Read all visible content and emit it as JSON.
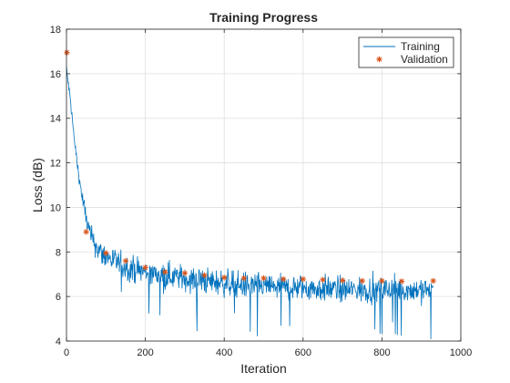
{
  "chart_data": {
    "type": "line",
    "title": "Training Progress",
    "xlabel": "Iteration",
    "ylabel": "Loss (dB)",
    "xlim": [
      0,
      1000
    ],
    "ylim": [
      4,
      18
    ],
    "xticks": [
      0,
      200,
      400,
      600,
      800,
      1000
    ],
    "yticks": [
      4,
      6,
      8,
      10,
      12,
      14,
      16,
      18
    ],
    "xtick_labels": [
      "0",
      "200",
      "400",
      "600",
      "800",
      "1000"
    ],
    "ytick_labels": [
      "4",
      "6",
      "8",
      "10",
      "12",
      "14",
      "16",
      "18"
    ],
    "grid": true,
    "legend_position": "top-right",
    "series": [
      {
        "name": "Training",
        "style": "line",
        "color": "#0072BD",
        "x": [
          0,
          10,
          20,
          30,
          40,
          50,
          60,
          70,
          80,
          90,
          100,
          120,
          140,
          160,
          180,
          200,
          225,
          250,
          275,
          300,
          325,
          350,
          375,
          400,
          425,
          450,
          475,
          500,
          525,
          550,
          575,
          600,
          625,
          650,
          675,
          700,
          725,
          750,
          775,
          800,
          825,
          850,
          875,
          900,
          930
        ],
        "values": [
          16.2,
          14.8,
          13.0,
          11.6,
          10.4,
          9.5,
          8.8,
          8.4,
          8.1,
          7.9,
          7.8,
          7.6,
          7.4,
          7.3,
          7.2,
          7.1,
          7.0,
          6.95,
          6.9,
          6.8,
          6.75,
          6.7,
          6.65,
          6.6,
          6.55,
          6.5,
          6.5,
          6.45,
          6.45,
          6.4,
          6.4,
          6.4,
          6.35,
          6.35,
          6.35,
          6.3,
          6.3,
          6.3,
          6.3,
          6.3,
          6.3,
          6.3,
          6.3,
          6.3,
          6.3
        ]
      },
      {
        "name": "Validation",
        "style": "marker",
        "marker": "asterisk",
        "color": "#D95319",
        "x": [
          1,
          50,
          100,
          150,
          200,
          250,
          300,
          350,
          400,
          450,
          500,
          550,
          600,
          650,
          700,
          750,
          800,
          850,
          930
        ],
        "values": [
          16.95,
          8.9,
          7.95,
          7.6,
          7.3,
          7.1,
          7.05,
          6.95,
          6.85,
          6.82,
          6.82,
          6.78,
          6.78,
          6.75,
          6.72,
          6.7,
          6.7,
          6.68,
          6.7
        ]
      }
    ]
  }
}
